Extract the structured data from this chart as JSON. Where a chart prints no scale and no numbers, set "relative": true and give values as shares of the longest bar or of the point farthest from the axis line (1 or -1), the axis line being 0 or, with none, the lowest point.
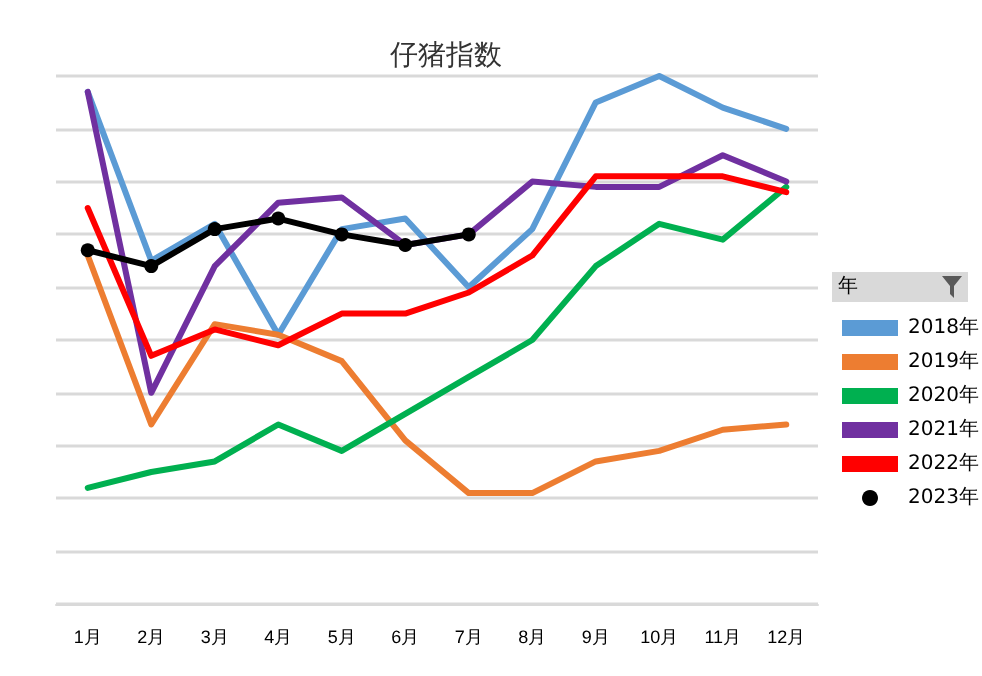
{
  "chart_data": {
    "type": "line",
    "title": "仔猪指数",
    "legend_title": "年",
    "relative": true,
    "grid": "y",
    "legend": "right",
    "marker": "none",
    "line_style": "solid",
    "categories": [
      "1月",
      "2月",
      "3月",
      "4月",
      "5月",
      "6月",
      "7月",
      "8月",
      "9月",
      "10月",
      "11月",
      "12月"
    ],
    "series": [
      {
        "name": "2018年",
        "color": "#5b9bd5",
        "values": [
          0.97,
          0.65,
          0.72,
          0.51,
          0.71,
          0.73,
          0.6,
          0.71,
          0.95,
          1,
          0.94,
          0.9
        ]
      },
      {
        "name": "2019年",
        "color": "#ed7d31",
        "values": [
          0.66,
          0.34,
          0.53,
          0.51,
          0.46,
          0.31,
          0.21,
          0.21,
          0.27,
          0.29,
          0.33,
          0.34
        ]
      },
      {
        "name": "2020年",
        "color": "#00b050",
        "values": [
          0.22,
          0.25,
          0.27,
          0.34,
          0.29,
          0.36,
          0.43,
          0.5,
          0.64,
          0.72,
          0.69,
          0.79
        ]
      },
      {
        "name": "2021年",
        "color": "#7030a0",
        "values": [
          0.97,
          0.4,
          0.64,
          0.76,
          0.77,
          0.68,
          0.7,
          0.8,
          0.79,
          0.79,
          0.85,
          0.8
        ]
      },
      {
        "name": "2022年",
        "color": "#ff0000",
        "values": [
          0.75,
          0.47,
          0.52,
          0.49,
          0.55,
          0.55,
          0.59,
          0.66,
          0.81,
          0.81,
          0.81,
          0.78
        ]
      },
      {
        "name": "2023年",
        "color": "#000000",
        "marker": "circle",
        "values": [
          0.67,
          0.64,
          0.71,
          0.73,
          0.7,
          0.68,
          0.7,
          null,
          null,
          null,
          null,
          null
        ]
      }
    ]
  }
}
